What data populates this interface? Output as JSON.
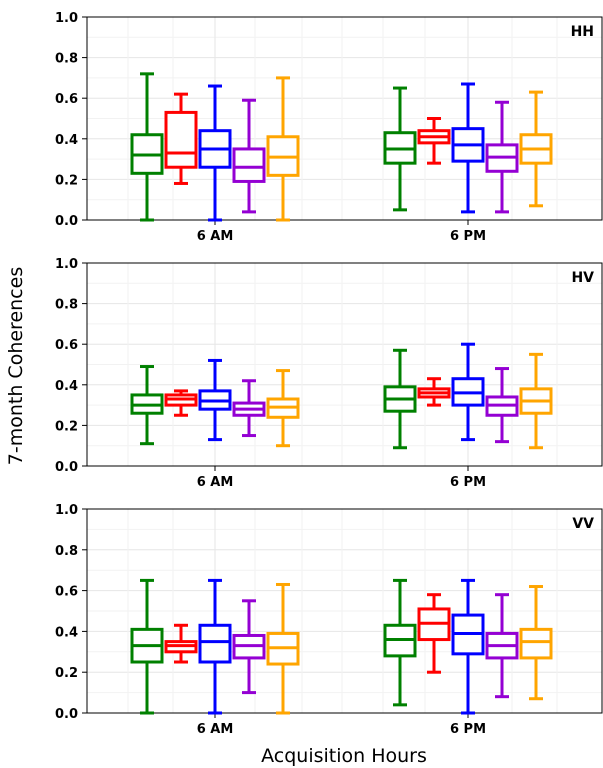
{
  "chart_data": {
    "type": "box",
    "ylabel": "7-month Coherences",
    "xlabel": "Acquisition Hours",
    "colors": [
      "#008000",
      "#ff0000",
      "#0000ff",
      "#9400d3",
      "#ffa500"
    ],
    "ylim": [
      0,
      1.0
    ],
    "yticks": [
      "0.0",
      "0.2",
      "0.4",
      "0.6",
      "0.8",
      "1.0"
    ],
    "grid": true,
    "panels": [
      {
        "title": "HH",
        "categories": [
          "6 AM",
          "6 PM"
        ],
        "groups": [
          {
            "category": "6 AM",
            "boxes": [
              {
                "min": 0.0,
                "q1": 0.23,
                "median": 0.32,
                "q3": 0.42,
                "max": 0.72
              },
              {
                "min": 0.18,
                "q1": 0.26,
                "median": 0.33,
                "q3": 0.53,
                "max": 0.62
              },
              {
                "min": 0.0,
                "q1": 0.26,
                "median": 0.35,
                "q3": 0.44,
                "max": 0.66
              },
              {
                "min": 0.04,
                "q1": 0.19,
                "median": 0.26,
                "q3": 0.35,
                "max": 0.59
              },
              {
                "min": 0.0,
                "q1": 0.22,
                "median": 0.31,
                "q3": 0.41,
                "max": 0.7
              }
            ]
          },
          {
            "category": "6 PM",
            "boxes": [
              {
                "min": 0.05,
                "q1": 0.28,
                "median": 0.35,
                "q3": 0.43,
                "max": 0.65
              },
              {
                "min": 0.28,
                "q1": 0.38,
                "median": 0.41,
                "q3": 0.44,
                "max": 0.5
              },
              {
                "min": 0.04,
                "q1": 0.29,
                "median": 0.37,
                "q3": 0.45,
                "max": 0.67
              },
              {
                "min": 0.04,
                "q1": 0.24,
                "median": 0.31,
                "q3": 0.37,
                "max": 0.58
              },
              {
                "min": 0.07,
                "q1": 0.28,
                "median": 0.35,
                "q3": 0.42,
                "max": 0.63
              }
            ]
          }
        ]
      },
      {
        "title": "HV",
        "categories": [
          "6 AM",
          "6 PM"
        ],
        "groups": [
          {
            "category": "6 AM",
            "boxes": [
              {
                "min": 0.11,
                "q1": 0.26,
                "median": 0.3,
                "q3": 0.35,
                "max": 0.49
              },
              {
                "min": 0.25,
                "q1": 0.3,
                "median": 0.33,
                "q3": 0.35,
                "max": 0.37
              },
              {
                "min": 0.13,
                "q1": 0.28,
                "median": 0.32,
                "q3": 0.37,
                "max": 0.52
              },
              {
                "min": 0.15,
                "q1": 0.25,
                "median": 0.28,
                "q3": 0.31,
                "max": 0.42
              },
              {
                "min": 0.1,
                "q1": 0.24,
                "median": 0.29,
                "q3": 0.33,
                "max": 0.47
              }
            ]
          },
          {
            "category": "6 PM",
            "boxes": [
              {
                "min": 0.09,
                "q1": 0.27,
                "median": 0.33,
                "q3": 0.39,
                "max": 0.57
              },
              {
                "min": 0.3,
                "q1": 0.34,
                "median": 0.36,
                "q3": 0.38,
                "max": 0.43
              },
              {
                "min": 0.13,
                "q1": 0.3,
                "median": 0.36,
                "q3": 0.43,
                "max": 0.6
              },
              {
                "min": 0.12,
                "q1": 0.25,
                "median": 0.3,
                "q3": 0.34,
                "max": 0.48
              },
              {
                "min": 0.09,
                "q1": 0.26,
                "median": 0.32,
                "q3": 0.38,
                "max": 0.55
              }
            ]
          }
        ]
      },
      {
        "title": "VV",
        "categories": [
          "6 AM",
          "6 PM"
        ],
        "groups": [
          {
            "category": "6 AM",
            "boxes": [
              {
                "min": 0.0,
                "q1": 0.25,
                "median": 0.33,
                "q3": 0.41,
                "max": 0.65
              },
              {
                "min": 0.25,
                "q1": 0.3,
                "median": 0.33,
                "q3": 0.35,
                "max": 0.43
              },
              {
                "min": 0.0,
                "q1": 0.25,
                "median": 0.35,
                "q3": 0.43,
                "max": 0.65
              },
              {
                "min": 0.1,
                "q1": 0.27,
                "median": 0.33,
                "q3": 0.38,
                "max": 0.55
              },
              {
                "min": 0.0,
                "q1": 0.24,
                "median": 0.32,
                "q3": 0.39,
                "max": 0.63
              }
            ]
          },
          {
            "category": "6 PM",
            "boxes": [
              {
                "min": 0.04,
                "q1": 0.28,
                "median": 0.36,
                "q3": 0.43,
                "max": 0.65
              },
              {
                "min": 0.2,
                "q1": 0.36,
                "median": 0.44,
                "q3": 0.51,
                "max": 0.58
              },
              {
                "min": 0.0,
                "q1": 0.29,
                "median": 0.39,
                "q3": 0.48,
                "max": 0.65
              },
              {
                "min": 0.08,
                "q1": 0.27,
                "median": 0.33,
                "q3": 0.39,
                "max": 0.58
              },
              {
                "min": 0.07,
                "q1": 0.27,
                "median": 0.35,
                "q3": 0.41,
                "max": 0.62
              }
            ]
          }
        ]
      }
    ]
  }
}
